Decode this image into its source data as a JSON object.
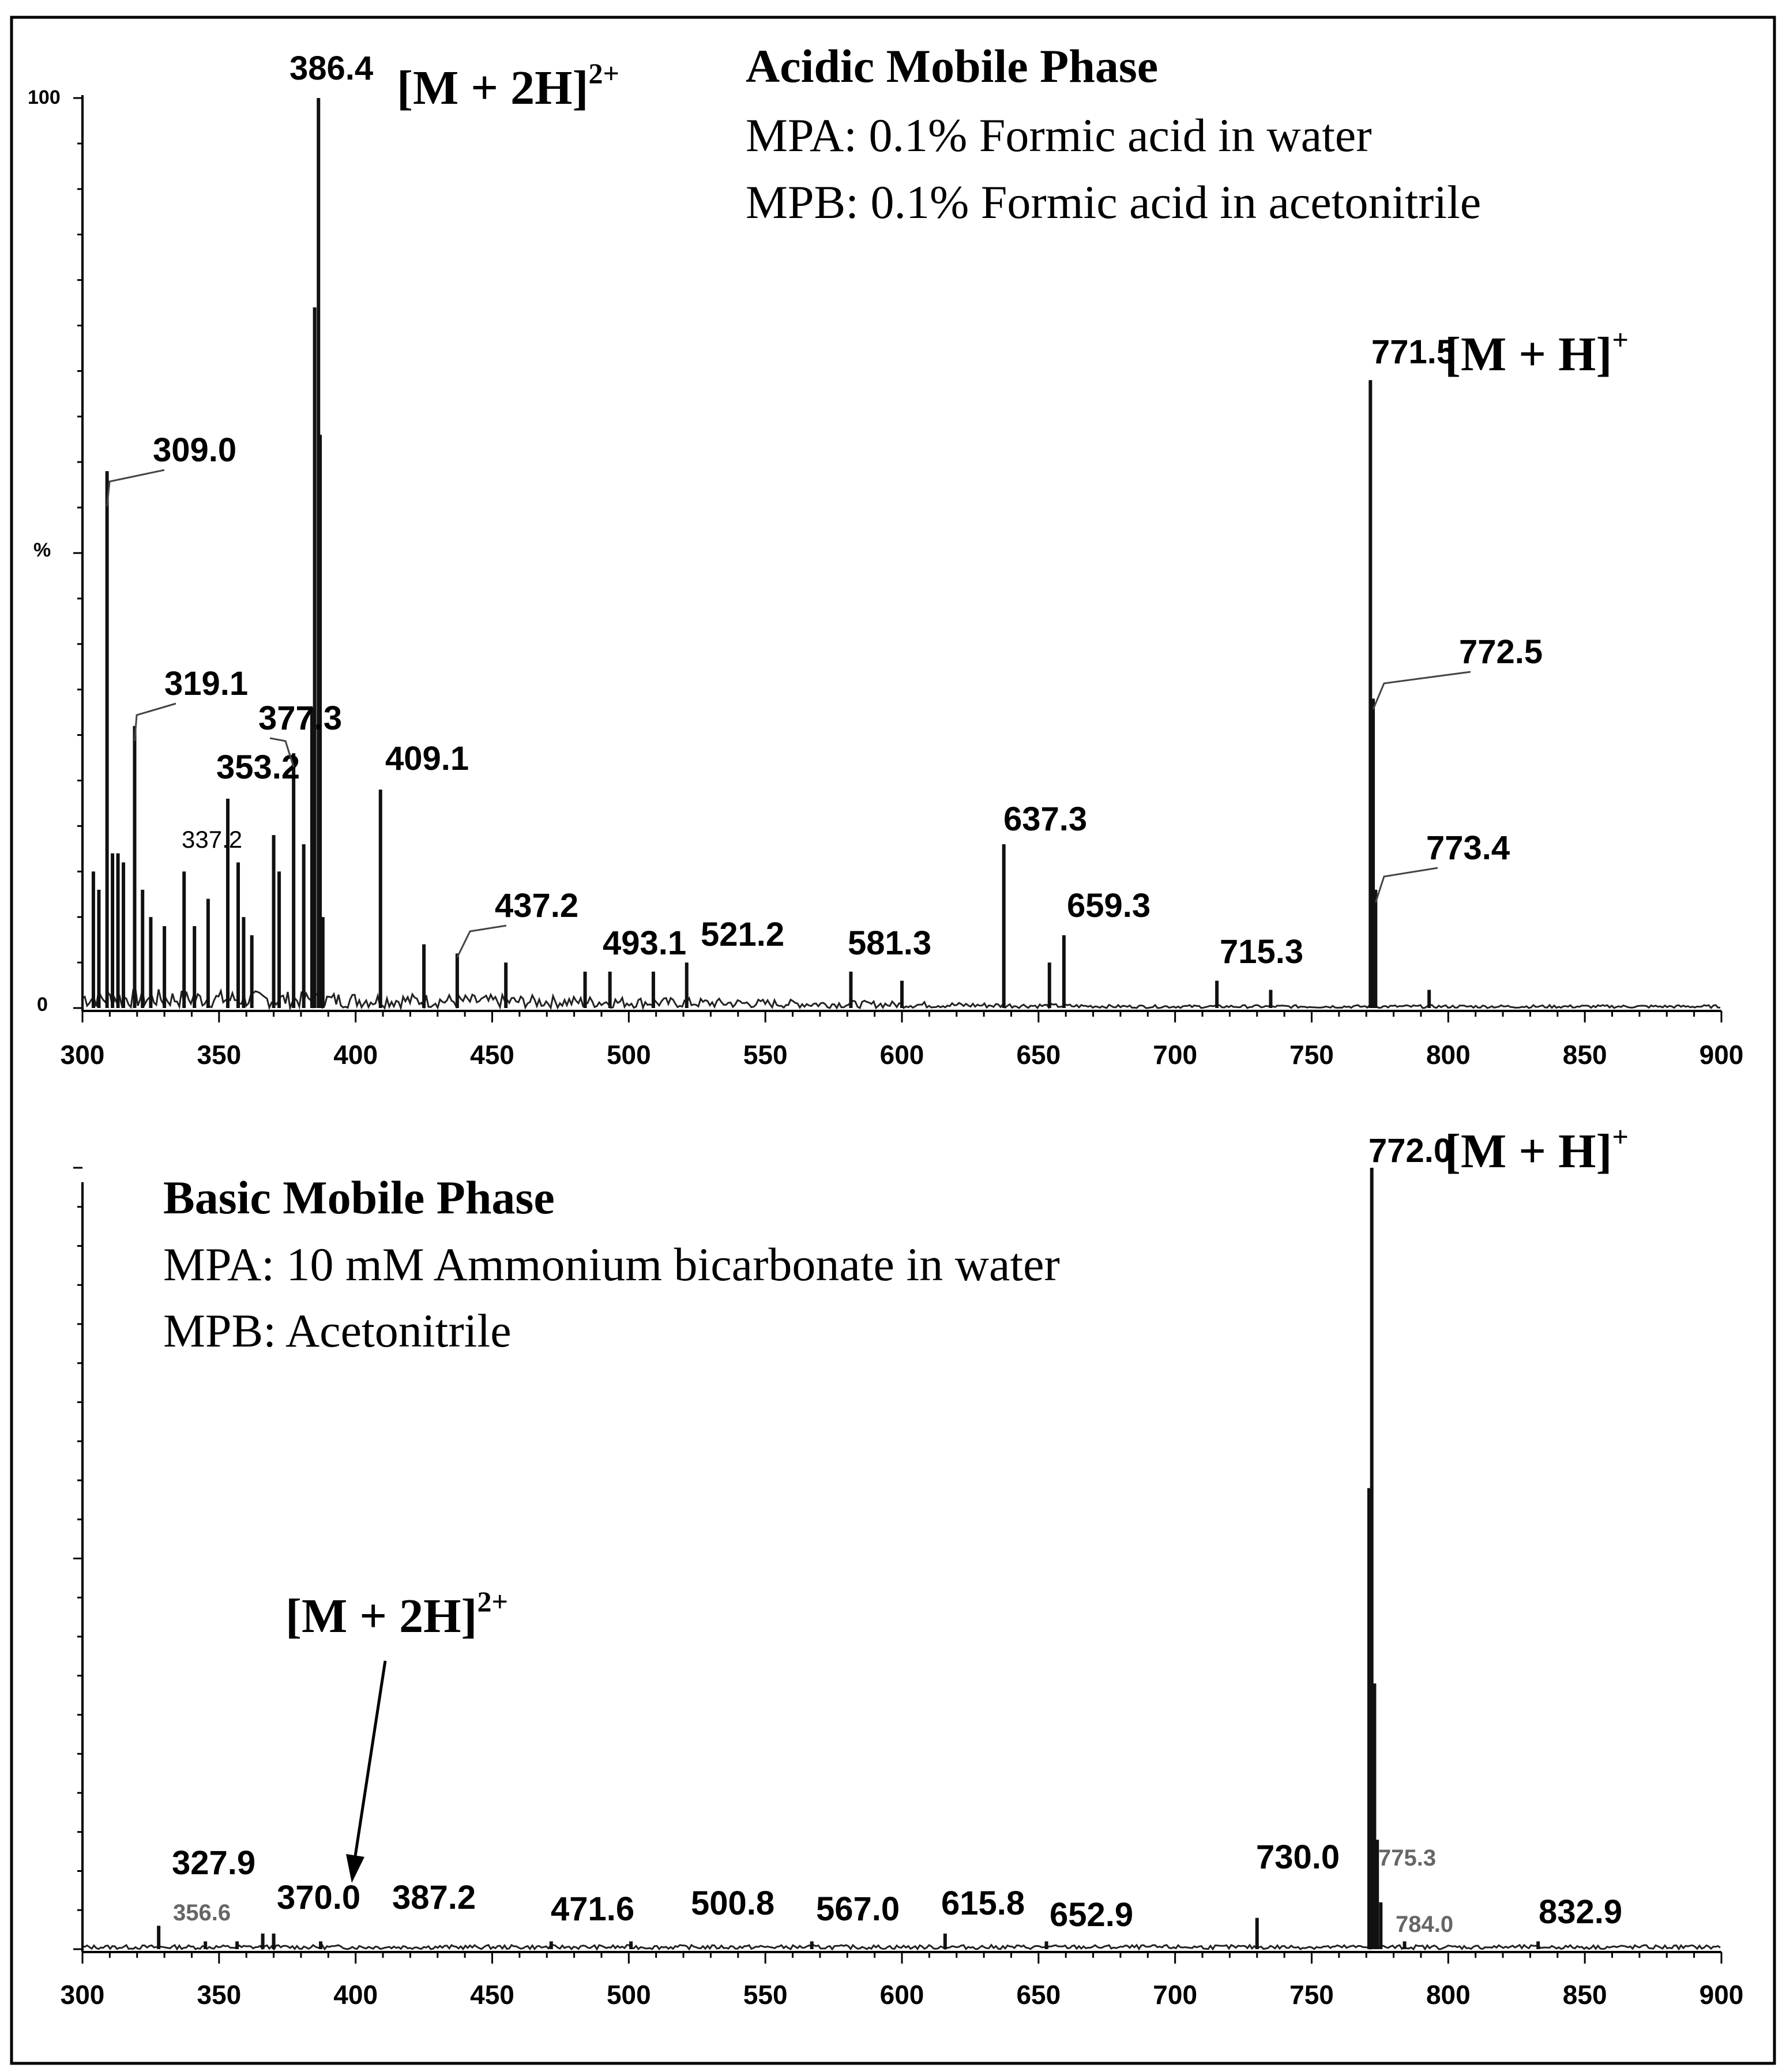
{
  "chart_data": [
    {
      "type": "line",
      "subtype": "mass-spectrum",
      "title": "Acidic Mobile Phase",
      "conditions": [
        "MPA: 0.1% Formic acid in water",
        "MPB: 0.1% Formic acid in acetonitrile"
      ],
      "xlim": [
        300,
        900
      ],
      "ylim": [
        0,
        100
      ],
      "x_ticks": [
        "300",
        "350",
        "400",
        "450",
        "500",
        "550",
        "600",
        "650",
        "700",
        "750",
        "800",
        "850",
        "900"
      ],
      "y_ticks": [
        "100",
        "%",
        "0"
      ],
      "peaks": [
        {
          "mz": 309.0,
          "intensity": 59,
          "label": "309.0"
        },
        {
          "mz": 319.1,
          "intensity": 31,
          "label": "319.1"
        },
        {
          "mz": 337.2,
          "intensity": 15,
          "label": "337.2"
        },
        {
          "mz": 353.2,
          "intensity": 23,
          "label": "353.2"
        },
        {
          "mz": 377.3,
          "intensity": 28,
          "label": "377.3"
        },
        {
          "mz": 386.4,
          "intensity": 100,
          "label": "386.4"
        },
        {
          "mz": 409.1,
          "intensity": 24,
          "label": "409.1"
        },
        {
          "mz": 437.2,
          "intensity": 6,
          "label": "437.2"
        },
        {
          "mz": 493.1,
          "intensity": 4,
          "label": "493.1"
        },
        {
          "mz": 521.2,
          "intensity": 5,
          "label": "521.2"
        },
        {
          "mz": 581.3,
          "intensity": 4,
          "label": "581.3"
        },
        {
          "mz": 637.3,
          "intensity": 18,
          "label": "637.3"
        },
        {
          "mz": 659.3,
          "intensity": 8,
          "label": "659.3"
        },
        {
          "mz": 715.3,
          "intensity": 3,
          "label": "715.3"
        },
        {
          "mz": 771.5,
          "intensity": 69,
          "label": "771.5"
        },
        {
          "mz": 772.5,
          "intensity": 34,
          "label": "772.5"
        },
        {
          "mz": 773.4,
          "intensity": 13,
          "label": "773.4"
        }
      ],
      "minor_peaks": [
        {
          "mz": 304,
          "intensity": 15
        },
        {
          "mz": 306,
          "intensity": 13
        },
        {
          "mz": 311,
          "intensity": 17
        },
        {
          "mz": 313,
          "intensity": 17
        },
        {
          "mz": 315,
          "intensity": 16
        },
        {
          "mz": 322,
          "intensity": 13
        },
        {
          "mz": 325,
          "intensity": 10
        },
        {
          "mz": 330,
          "intensity": 9
        },
        {
          "mz": 341,
          "intensity": 9
        },
        {
          "mz": 346,
          "intensity": 12
        },
        {
          "mz": 357,
          "intensity": 16
        },
        {
          "mz": 359,
          "intensity": 10
        },
        {
          "mz": 362,
          "intensity": 8
        },
        {
          "mz": 370,
          "intensity": 19
        },
        {
          "mz": 372,
          "intensity": 15
        },
        {
          "mz": 381,
          "intensity": 18
        },
        {
          "mz": 384,
          "intensity": 33
        },
        {
          "mz": 385,
          "intensity": 77
        },
        {
          "mz": 387,
          "intensity": 63
        },
        {
          "mz": 388,
          "intensity": 10
        },
        {
          "mz": 425,
          "intensity": 7
        },
        {
          "mz": 455,
          "intensity": 5
        },
        {
          "mz": 484,
          "intensity": 4
        },
        {
          "mz": 509,
          "intensity": 4
        },
        {
          "mz": 600,
          "intensity": 3
        },
        {
          "mz": 654,
          "intensity": 5
        },
        {
          "mz": 735,
          "intensity": 2
        },
        {
          "mz": 793,
          "intensity": 2
        }
      ],
      "annotations": [
        {
          "text": "[M + 2H]",
          "charge": "2+",
          "near_mz": 386.4
        },
        {
          "text": "[M + H]",
          "charge": "+",
          "near_mz": 771.5
        }
      ]
    },
    {
      "type": "line",
      "subtype": "mass-spectrum",
      "title": "Basic Mobile Phase",
      "conditions": [
        "MPA: 10 mM Ammonium bicarbonate in water",
        "MPB: Acetonitrile"
      ],
      "xlim": [
        300,
        900
      ],
      "ylim": [
        0,
        100
      ],
      "x_ticks": [
        "300",
        "350",
        "400",
        "450",
        "500",
        "550",
        "600",
        "650",
        "700",
        "750",
        "800",
        "850",
        "900"
      ],
      "peaks": [
        {
          "mz": 327.9,
          "intensity": 3,
          "label": "327.9"
        },
        {
          "mz": 356.6,
          "intensity": 1,
          "label": "356.6"
        },
        {
          "mz": 370.0,
          "intensity": 2,
          "label": "370.0"
        },
        {
          "mz": 387.2,
          "intensity": 1,
          "label": "387.2"
        },
        {
          "mz": 471.6,
          "intensity": 1,
          "label": "471.6"
        },
        {
          "mz": 500.8,
          "intensity": 1,
          "label": "500.8"
        },
        {
          "mz": 567.0,
          "intensity": 1,
          "label": "567.0"
        },
        {
          "mz": 615.8,
          "intensity": 2,
          "label": "615.8"
        },
        {
          "mz": 652.9,
          "intensity": 1,
          "label": "652.9"
        },
        {
          "mz": 730.0,
          "intensity": 4,
          "label": "730.0"
        },
        {
          "mz": 772.0,
          "intensity": 100,
          "label": "772.0"
        },
        {
          "mz": 775.3,
          "intensity": 6,
          "label": "775.3"
        },
        {
          "mz": 784.0,
          "intensity": 1,
          "label": "784.0"
        },
        {
          "mz": 832.9,
          "intensity": 1,
          "label": "832.9"
        }
      ],
      "minor_peaks": [
        {
          "mz": 771,
          "intensity": 59
        },
        {
          "mz": 773,
          "intensity": 34
        },
        {
          "mz": 774,
          "intensity": 14
        },
        {
          "mz": 366,
          "intensity": 2
        },
        {
          "mz": 345,
          "intensity": 1
        }
      ],
      "annotations": [
        {
          "text": "[M + H]",
          "charge": "+",
          "near_mz": 772.0
        },
        {
          "text": "[M + 2H]",
          "charge": "2+",
          "near_mz": 387.2
        }
      ]
    }
  ]
}
